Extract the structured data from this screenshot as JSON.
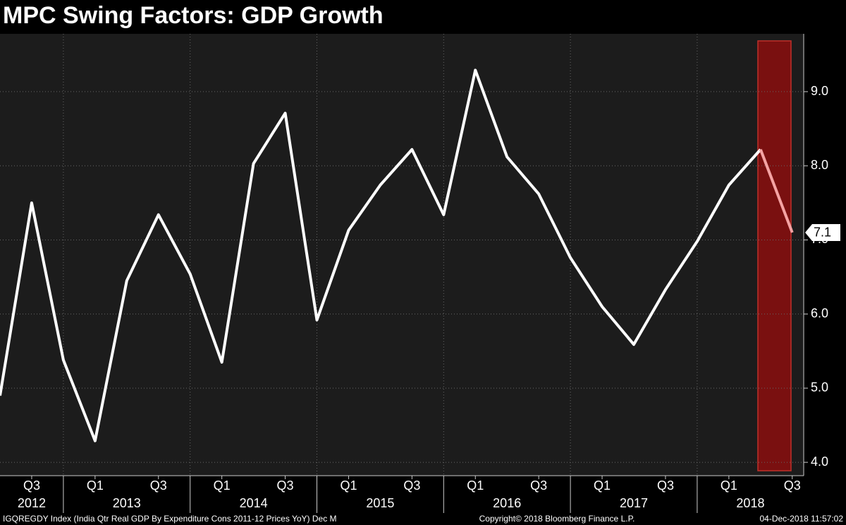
{
  "chart_data": {
    "type": "line",
    "title": "MPC Swing Factors: GDP Growth",
    "categories": [
      null,
      "Q3",
      null,
      "Q1",
      null,
      "Q3",
      null,
      "Q1",
      null,
      "Q3",
      null,
      "Q1",
      null,
      "Q3",
      null,
      "Q1",
      null,
      "Q3",
      null,
      "Q1",
      null,
      "Q3",
      null,
      "Q1",
      null,
      "Q3"
    ],
    "years": [
      "2012",
      "2013",
      "2014",
      "2015",
      "2016",
      "2017",
      "2018"
    ],
    "series": [
      {
        "color": "#ffffff",
        "forecast_color": "#f4a3a3",
        "values": [
          4.9,
          7.5,
          5.38,
          4.29,
          6.45,
          7.34,
          6.54,
          5.35,
          8.03,
          8.71,
          5.92,
          7.13,
          7.74,
          8.22,
          7.34,
          9.29,
          8.12,
          7.62,
          6.76,
          6.1,
          5.59,
          6.33,
          6.98,
          7.74,
          8.22,
          7.1
        ]
      }
    ],
    "ylim": [
      3.82,
      9.78
    ],
    "yticks": [
      {
        "value": 4,
        "label": "4.0"
      },
      {
        "value": 5,
        "label": "5.0"
      },
      {
        "value": 6,
        "label": "6.0"
      },
      {
        "value": 7,
        "label": "7.0"
      },
      {
        "value": 8,
        "label": "8.0"
      },
      {
        "value": 9,
        "label": "9.0"
      }
    ],
    "grid": true,
    "footer_left": "IGQREGDY Index (India Qtr Real GDP By Expenditure Cons 2011-12 Prices YoY) Dec M",
    "footer_center": "Copyright© 2018 Bloomberg Finance L.P.",
    "footer_right": "04-Dec-2018 11:57:02"
  }
}
